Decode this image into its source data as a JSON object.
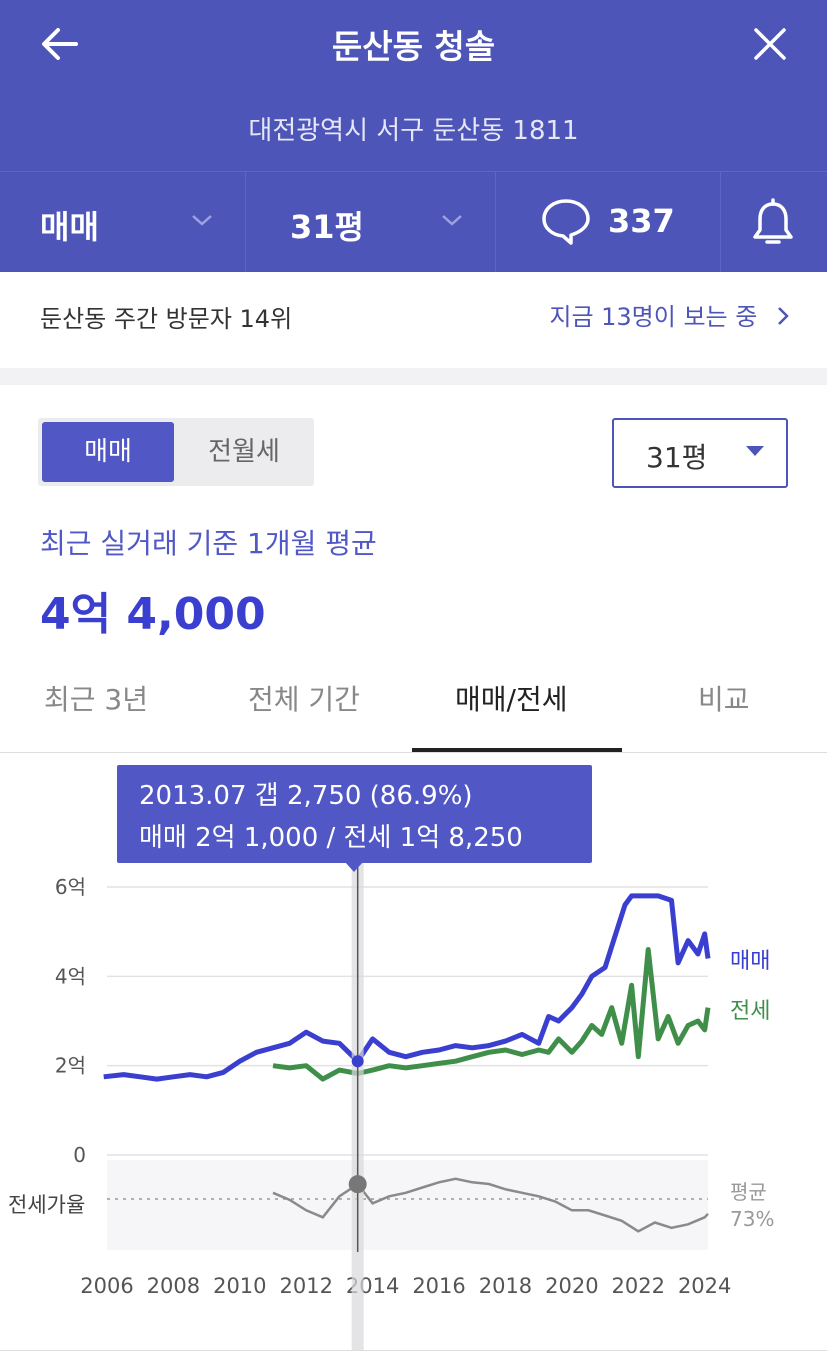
{
  "header": {
    "title": "둔산동 청솔",
    "address": "대전광역시 서구 둔산동 1811",
    "trade_type": "매매",
    "size": "31평",
    "comment_count": "337"
  },
  "visitors": {
    "rank_text": "둔산동 주간 방문자 14위",
    "viewing_text": "지금 13명이 보는 중"
  },
  "filters": {
    "segment_active": "매매",
    "segment_inactive": "전월세",
    "size_select": "31평"
  },
  "summary": {
    "label": "최근 실거래 기준 1개월 평균",
    "price": "4억 4,000"
  },
  "tabs": [
    {
      "label": "최근 3년"
    },
    {
      "label": "전체 기간"
    },
    {
      "label": "매매/전세"
    },
    {
      "label": "비교"
    }
  ],
  "tooltip": {
    "line1": "2013.07  갭 2,750 (86.9%)",
    "line2": "매매 2억 1,000 / 전세 1억 8,250"
  },
  "colors": {
    "header_bg": "#4e55b8",
    "sale": "#3a3fcf",
    "jeonse": "#3f8f4a",
    "ratio": "#8a8a8a"
  },
  "chart_data": {
    "type": "line",
    "y_ticks": [
      "6억",
      "4억",
      "2억",
      "0"
    ],
    "x_ticks": [
      "2006",
      "2008",
      "2010",
      "2012",
      "2014",
      "2016",
      "2018",
      "2020",
      "2022",
      "2024"
    ],
    "ylim": [
      0,
      6
    ],
    "xlim": [
      2006,
      2024.1
    ],
    "grid": true,
    "ratio_label": "전세가율",
    "ratio_avg_label": "평균",
    "ratio_avg_value": "73%",
    "cursor_x": 2013.55,
    "series": [
      {
        "name": "매매",
        "x": [
          2005.9,
          2006.5,
          2007,
          2007.5,
          2008,
          2008.5,
          2009,
          2009.5,
          2010,
          2010.5,
          2011,
          2011.5,
          2012,
          2012.5,
          2013,
          2013.55,
          2014,
          2014.5,
          2015,
          2015.5,
          2016,
          2016.5,
          2017,
          2017.5,
          2018,
          2018.5,
          2019,
          2019.3,
          2019.6,
          2020,
          2020.3,
          2020.6,
          2021,
          2021.3,
          2021.6,
          2021.8,
          2022.2,
          2022.6,
          2023,
          2023.2,
          2023.5,
          2023.8,
          2024,
          2024.1
        ],
        "values": [
          1.75,
          1.8,
          1.75,
          1.7,
          1.75,
          1.8,
          1.75,
          1.85,
          2.1,
          2.3,
          2.4,
          2.5,
          2.75,
          2.55,
          2.5,
          2.1,
          2.6,
          2.3,
          2.2,
          2.3,
          2.35,
          2.45,
          2.4,
          2.45,
          2.55,
          2.7,
          2.5,
          3.1,
          3.0,
          3.3,
          3.6,
          4.0,
          4.2,
          4.9,
          5.6,
          5.8,
          5.8,
          5.8,
          5.7,
          4.3,
          4.8,
          4.5,
          4.95,
          4.4
        ]
      },
      {
        "name": "전세",
        "x": [
          2011,
          2011.5,
          2012,
          2012.5,
          2013,
          2013.55,
          2014,
          2014.5,
          2015,
          2015.5,
          2016,
          2016.5,
          2017,
          2017.5,
          2018,
          2018.5,
          2019,
          2019.3,
          2019.6,
          2020,
          2020.3,
          2020.6,
          2020.9,
          2021.2,
          2021.5,
          2021.8,
          2022,
          2022.3,
          2022.6,
          2022.9,
          2023.2,
          2023.5,
          2023.8,
          2024,
          2024.1
        ],
        "values": [
          2.0,
          1.95,
          2.0,
          1.7,
          1.9,
          1.825,
          1.9,
          2.0,
          1.95,
          2.0,
          2.05,
          2.1,
          2.2,
          2.3,
          2.35,
          2.25,
          2.35,
          2.3,
          2.6,
          2.3,
          2.55,
          2.9,
          2.7,
          3.3,
          2.5,
          3.8,
          2.2,
          4.6,
          2.6,
          3.1,
          2.5,
          2.9,
          3.0,
          2.8,
          3.3
        ]
      },
      {
        "name": "전세가율",
        "x": [
          2011,
          2011.5,
          2012,
          2012.5,
          2013,
          2013.55,
          2014,
          2014.5,
          2015,
          2015.5,
          2016,
          2016.5,
          2017,
          2017.5,
          2018,
          2018.5,
          2019,
          2019.5,
          2020,
          2020.5,
          2021,
          2021.5,
          2022,
          2022.5,
          2023,
          2023.5,
          2024,
          2024.1
        ],
        "values": [
          82,
          78,
          72,
          68,
          80,
          86.9,
          76,
          80,
          82,
          85,
          88,
          90,
          88,
          87,
          84,
          82,
          80,
          77,
          72,
          72,
          69,
          66,
          60,
          65,
          62,
          64,
          68,
          70
        ]
      }
    ]
  }
}
